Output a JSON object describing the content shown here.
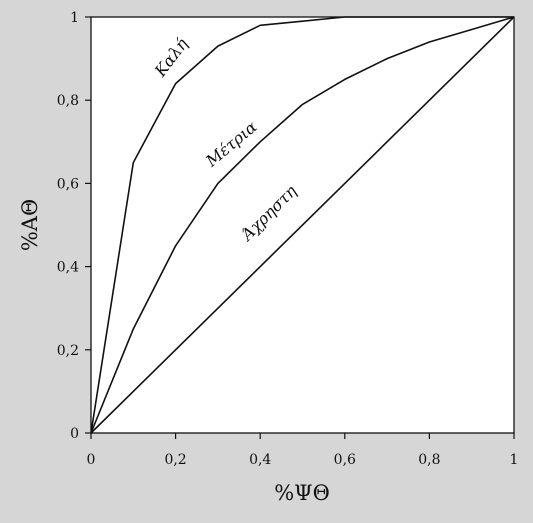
{
  "chart_data": {
    "type": "line",
    "title": "",
    "xlabel": "%ΨΘ",
    "ylabel": "%ΑΘ",
    "xlim": [
      0,
      1
    ],
    "ylim": [
      0,
      1
    ],
    "xticks": [
      0,
      0.2,
      0.4,
      0.6,
      0.8,
      1
    ],
    "xtick_labels": [
      "0",
      "0,2",
      "0,4",
      "0,6",
      "0,8",
      "1"
    ],
    "yticks": [
      0,
      0.2,
      0.4,
      0.6,
      0.8,
      1
    ],
    "ytick_labels": [
      "0",
      "0,2",
      "0,4",
      "0,6",
      "0,8",
      "1"
    ],
    "grid": false,
    "legend": "none",
    "colors": {
      "background": "#d6d6d6",
      "plot_area": "#ffffff",
      "line": "#111111"
    },
    "series": [
      {
        "name": "Καλή",
        "x": [
          0,
          0.1,
          0.2,
          0.3,
          0.4,
          0.5,
          0.6,
          0.7,
          0.8,
          0.9,
          1
        ],
        "y": [
          0,
          0.65,
          0.84,
          0.93,
          0.98,
          0.99,
          1,
          1,
          1,
          1,
          1
        ]
      },
      {
        "name": "Μέτρια",
        "x": [
          0,
          0.1,
          0.2,
          0.3,
          0.4,
          0.5,
          0.6,
          0.7,
          0.8,
          0.9,
          1
        ],
        "y": [
          0,
          0.25,
          0.45,
          0.6,
          0.7,
          0.79,
          0.85,
          0.9,
          0.94,
          0.97,
          1
        ]
      },
      {
        "name": "Άχρηστη",
        "x": [
          0,
          1
        ],
        "y": [
          0,
          1
        ]
      }
    ]
  }
}
